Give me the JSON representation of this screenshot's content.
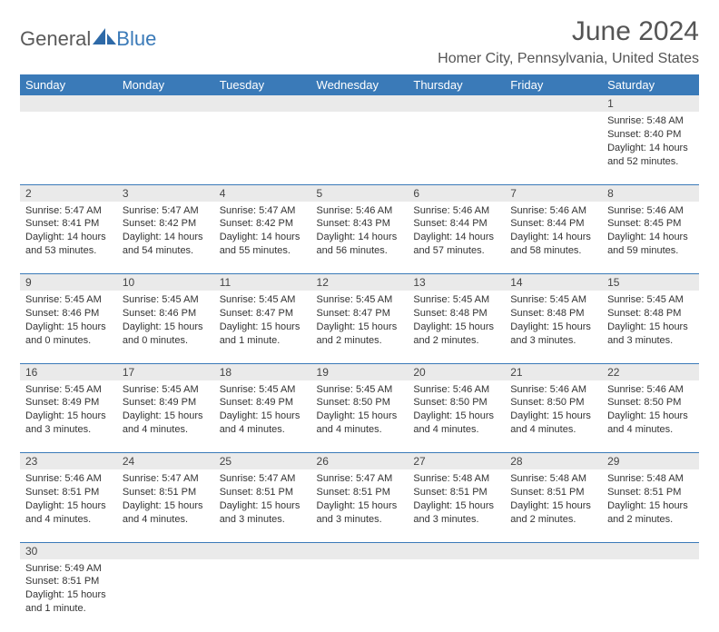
{
  "brand": {
    "general": "General",
    "blue": "Blue"
  },
  "header": {
    "month_title": "June 2024",
    "location": "Homer City, Pennsylvania, United States"
  },
  "colors": {
    "header_bg": "#3a7ab8",
    "header_text": "#ffffff",
    "daynum_bg": "#eaeaea",
    "border": "#3a7ab8",
    "page_bg": "#ffffff",
    "text": "#333333"
  },
  "typography": {
    "month_title_fontsize": 30,
    "location_fontsize": 16,
    "weekday_fontsize": 13,
    "daynum_fontsize": 12,
    "body_fontsize": 11
  },
  "weekdays": [
    "Sunday",
    "Monday",
    "Tuesday",
    "Wednesday",
    "Thursday",
    "Friday",
    "Saturday"
  ],
  "weeks": [
    {
      "nums": [
        "",
        "",
        "",
        "",
        "",
        "",
        "1"
      ],
      "cells": [
        null,
        null,
        null,
        null,
        null,
        null,
        {
          "sunrise": "Sunrise: 5:48 AM",
          "sunset": "Sunset: 8:40 PM",
          "daylight1": "Daylight: 14 hours",
          "daylight2": "and 52 minutes."
        }
      ]
    },
    {
      "nums": [
        "2",
        "3",
        "4",
        "5",
        "6",
        "7",
        "8"
      ],
      "cells": [
        {
          "sunrise": "Sunrise: 5:47 AM",
          "sunset": "Sunset: 8:41 PM",
          "daylight1": "Daylight: 14 hours",
          "daylight2": "and 53 minutes."
        },
        {
          "sunrise": "Sunrise: 5:47 AM",
          "sunset": "Sunset: 8:42 PM",
          "daylight1": "Daylight: 14 hours",
          "daylight2": "and 54 minutes."
        },
        {
          "sunrise": "Sunrise: 5:47 AM",
          "sunset": "Sunset: 8:42 PM",
          "daylight1": "Daylight: 14 hours",
          "daylight2": "and 55 minutes."
        },
        {
          "sunrise": "Sunrise: 5:46 AM",
          "sunset": "Sunset: 8:43 PM",
          "daylight1": "Daylight: 14 hours",
          "daylight2": "and 56 minutes."
        },
        {
          "sunrise": "Sunrise: 5:46 AM",
          "sunset": "Sunset: 8:44 PM",
          "daylight1": "Daylight: 14 hours",
          "daylight2": "and 57 minutes."
        },
        {
          "sunrise": "Sunrise: 5:46 AM",
          "sunset": "Sunset: 8:44 PM",
          "daylight1": "Daylight: 14 hours",
          "daylight2": "and 58 minutes."
        },
        {
          "sunrise": "Sunrise: 5:46 AM",
          "sunset": "Sunset: 8:45 PM",
          "daylight1": "Daylight: 14 hours",
          "daylight2": "and 59 minutes."
        }
      ]
    },
    {
      "nums": [
        "9",
        "10",
        "11",
        "12",
        "13",
        "14",
        "15"
      ],
      "cells": [
        {
          "sunrise": "Sunrise: 5:45 AM",
          "sunset": "Sunset: 8:46 PM",
          "daylight1": "Daylight: 15 hours",
          "daylight2": "and 0 minutes."
        },
        {
          "sunrise": "Sunrise: 5:45 AM",
          "sunset": "Sunset: 8:46 PM",
          "daylight1": "Daylight: 15 hours",
          "daylight2": "and 0 minutes."
        },
        {
          "sunrise": "Sunrise: 5:45 AM",
          "sunset": "Sunset: 8:47 PM",
          "daylight1": "Daylight: 15 hours",
          "daylight2": "and 1 minute."
        },
        {
          "sunrise": "Sunrise: 5:45 AM",
          "sunset": "Sunset: 8:47 PM",
          "daylight1": "Daylight: 15 hours",
          "daylight2": "and 2 minutes."
        },
        {
          "sunrise": "Sunrise: 5:45 AM",
          "sunset": "Sunset: 8:48 PM",
          "daylight1": "Daylight: 15 hours",
          "daylight2": "and 2 minutes."
        },
        {
          "sunrise": "Sunrise: 5:45 AM",
          "sunset": "Sunset: 8:48 PM",
          "daylight1": "Daylight: 15 hours",
          "daylight2": "and 3 minutes."
        },
        {
          "sunrise": "Sunrise: 5:45 AM",
          "sunset": "Sunset: 8:48 PM",
          "daylight1": "Daylight: 15 hours",
          "daylight2": "and 3 minutes."
        }
      ]
    },
    {
      "nums": [
        "16",
        "17",
        "18",
        "19",
        "20",
        "21",
        "22"
      ],
      "cells": [
        {
          "sunrise": "Sunrise: 5:45 AM",
          "sunset": "Sunset: 8:49 PM",
          "daylight1": "Daylight: 15 hours",
          "daylight2": "and 3 minutes."
        },
        {
          "sunrise": "Sunrise: 5:45 AM",
          "sunset": "Sunset: 8:49 PM",
          "daylight1": "Daylight: 15 hours",
          "daylight2": "and 4 minutes."
        },
        {
          "sunrise": "Sunrise: 5:45 AM",
          "sunset": "Sunset: 8:49 PM",
          "daylight1": "Daylight: 15 hours",
          "daylight2": "and 4 minutes."
        },
        {
          "sunrise": "Sunrise: 5:45 AM",
          "sunset": "Sunset: 8:50 PM",
          "daylight1": "Daylight: 15 hours",
          "daylight2": "and 4 minutes."
        },
        {
          "sunrise": "Sunrise: 5:46 AM",
          "sunset": "Sunset: 8:50 PM",
          "daylight1": "Daylight: 15 hours",
          "daylight2": "and 4 minutes."
        },
        {
          "sunrise": "Sunrise: 5:46 AM",
          "sunset": "Sunset: 8:50 PM",
          "daylight1": "Daylight: 15 hours",
          "daylight2": "and 4 minutes."
        },
        {
          "sunrise": "Sunrise: 5:46 AM",
          "sunset": "Sunset: 8:50 PM",
          "daylight1": "Daylight: 15 hours",
          "daylight2": "and 4 minutes."
        }
      ]
    },
    {
      "nums": [
        "23",
        "24",
        "25",
        "26",
        "27",
        "28",
        "29"
      ],
      "cells": [
        {
          "sunrise": "Sunrise: 5:46 AM",
          "sunset": "Sunset: 8:51 PM",
          "daylight1": "Daylight: 15 hours",
          "daylight2": "and 4 minutes."
        },
        {
          "sunrise": "Sunrise: 5:47 AM",
          "sunset": "Sunset: 8:51 PM",
          "daylight1": "Daylight: 15 hours",
          "daylight2": "and 4 minutes."
        },
        {
          "sunrise": "Sunrise: 5:47 AM",
          "sunset": "Sunset: 8:51 PM",
          "daylight1": "Daylight: 15 hours",
          "daylight2": "and 3 minutes."
        },
        {
          "sunrise": "Sunrise: 5:47 AM",
          "sunset": "Sunset: 8:51 PM",
          "daylight1": "Daylight: 15 hours",
          "daylight2": "and 3 minutes."
        },
        {
          "sunrise": "Sunrise: 5:48 AM",
          "sunset": "Sunset: 8:51 PM",
          "daylight1": "Daylight: 15 hours",
          "daylight2": "and 3 minutes."
        },
        {
          "sunrise": "Sunrise: 5:48 AM",
          "sunset": "Sunset: 8:51 PM",
          "daylight1": "Daylight: 15 hours",
          "daylight2": "and 2 minutes."
        },
        {
          "sunrise": "Sunrise: 5:48 AM",
          "sunset": "Sunset: 8:51 PM",
          "daylight1": "Daylight: 15 hours",
          "daylight2": "and 2 minutes."
        }
      ]
    },
    {
      "nums": [
        "30",
        "",
        "",
        "",
        "",
        "",
        ""
      ],
      "cells": [
        {
          "sunrise": "Sunrise: 5:49 AM",
          "sunset": "Sunset: 8:51 PM",
          "daylight1": "Daylight: 15 hours",
          "daylight2": "and 1 minute."
        },
        null,
        null,
        null,
        null,
        null,
        null
      ]
    }
  ]
}
